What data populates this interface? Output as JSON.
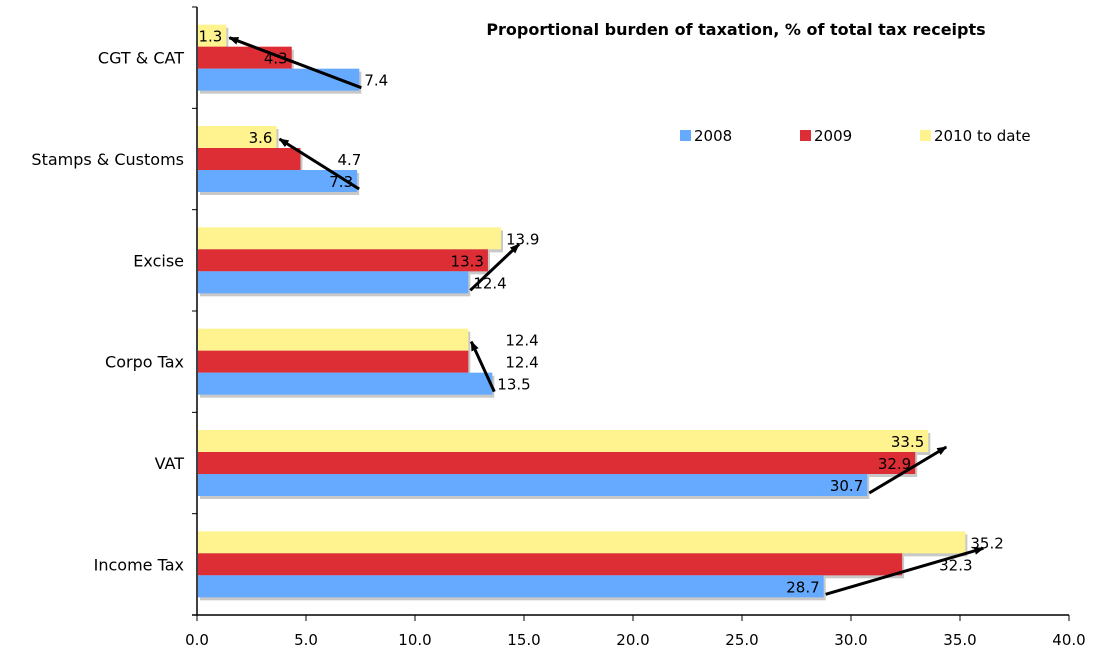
{
  "chart_data": {
    "type": "bar",
    "orientation": "horizontal",
    "title": "Proportional burden of taxation, % of total tax receipts",
    "xlabel": "",
    "ylabel": "",
    "xlim": [
      0,
      40
    ],
    "xticks": [
      "0.0",
      "5.0",
      "10.0",
      "15.0",
      "20.0",
      "25.0",
      "30.0",
      "35.0",
      "40.0"
    ],
    "grid": false,
    "legend_position": "top-right",
    "categories": [
      "CGT & CAT",
      "Stamps & Customs",
      "Excise",
      "Corpo Tax",
      "VAT",
      "Income Tax"
    ],
    "series": [
      {
        "name": "2008",
        "color": "#66aaff",
        "values": [
          7.4,
          7.3,
          12.4,
          13.5,
          30.7,
          28.7
        ]
      },
      {
        "name": "2009",
        "color": "#dd2e36",
        "values": [
          4.3,
          4.7,
          13.3,
          12.4,
          32.9,
          32.3
        ]
      },
      {
        "name": "2010 to date",
        "color": "#fff38f",
        "values": [
          1.3,
          3.6,
          13.9,
          12.4,
          33.5,
          35.2
        ]
      }
    ],
    "annotations": "Arrows from the 2008 bar end to the 2010-to-date bar end in each category, showing direction of change"
  }
}
